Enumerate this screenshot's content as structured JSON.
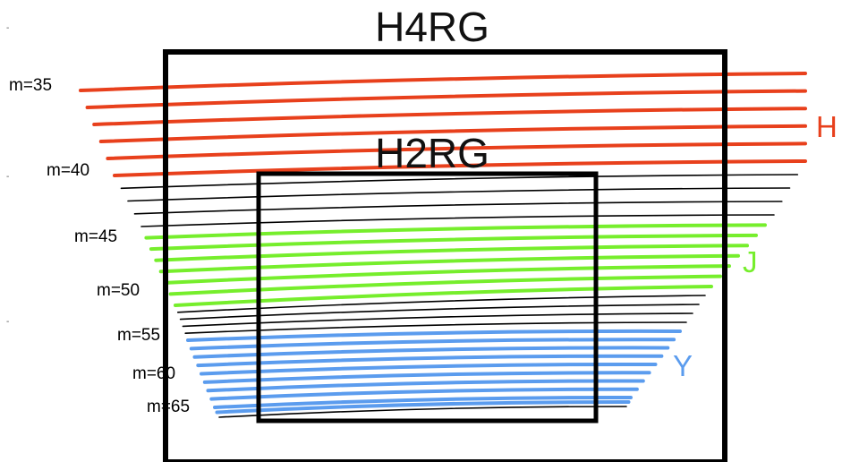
{
  "detectors": [
    {
      "id": "h4rg",
      "label": "H4RG"
    },
    {
      "id": "h2rg",
      "label": "H2RG"
    }
  ],
  "bands": [
    {
      "id": "H",
      "label": "H",
      "color": "#e8401c",
      "first_order": 35,
      "last_order": 40
    },
    {
      "id": "J",
      "label": "J",
      "color": "#76ee2c",
      "first_order": 45,
      "last_order": 51
    },
    {
      "id": "Y",
      "label": "Y",
      "color": "#5b9cee",
      "first_order": 56,
      "last_order": 65
    }
  ],
  "unlabeled_color": "#000000",
  "first_order": 35,
  "last_order": 66,
  "order_labels": [
    "m=35",
    "m=40",
    "m=45",
    "m=50",
    "m=55",
    "m=60",
    "m=65"
  ],
  "side_ticks": [
    "-",
    "-",
    "-"
  ]
}
